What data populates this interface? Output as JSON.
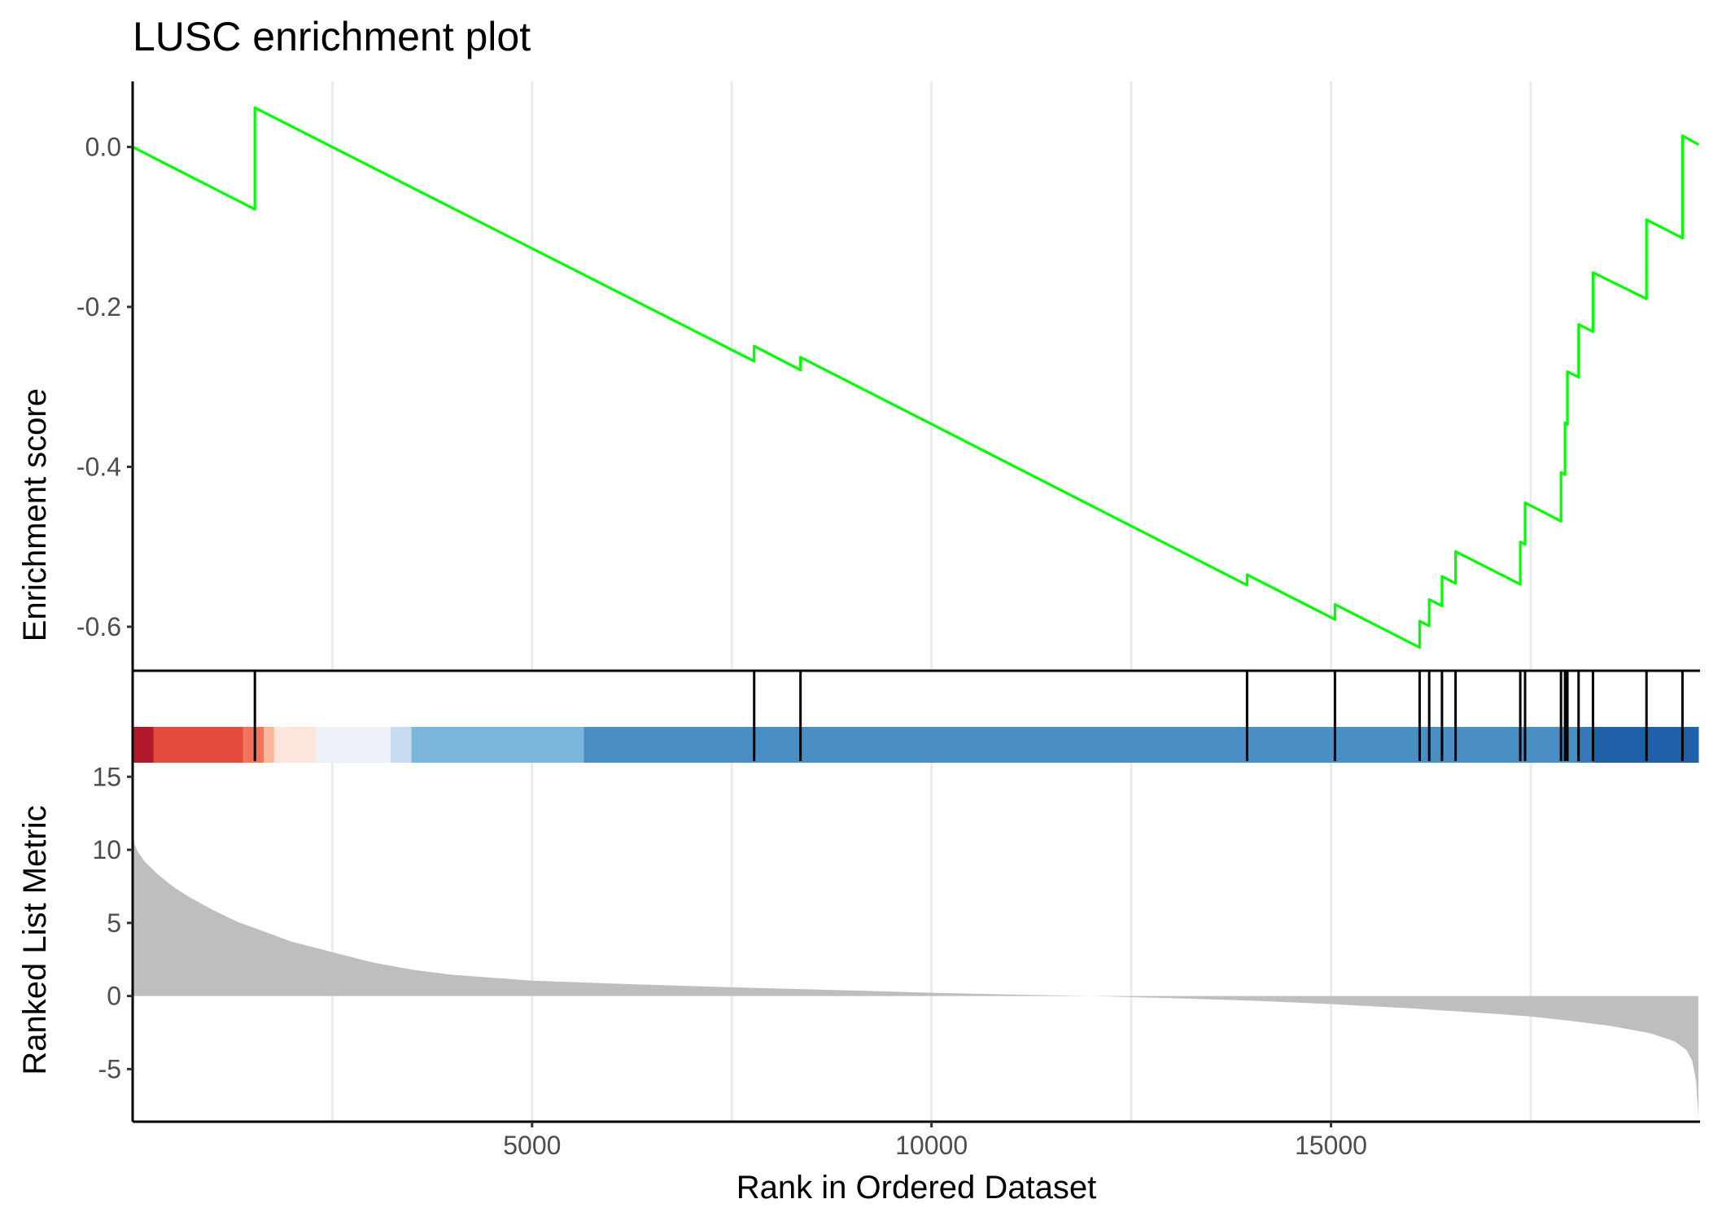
{
  "chart_data": {
    "type": "line",
    "title": "LUSC enrichment plot",
    "xlabel": "Rank in Ordered Dataset",
    "x_ticks": [
      "5000",
      "10000",
      "15000"
    ],
    "x_tick_values": [
      5000,
      10000,
      15000
    ],
    "xlim": [
      0,
      19600
    ],
    "grid_x": [
      2500,
      5000,
      7500,
      10000,
      12500,
      15000,
      17500
    ],
    "panels": {
      "enrichment": {
        "ylabel": "Enrichment score",
        "ylim": [
          -0.655,
          0.082
        ],
        "y_ticks": [
          "0.0",
          "-0.2",
          "-0.4",
          "-0.6"
        ],
        "y_tick_values": [
          0.0,
          -0.2,
          -0.4,
          -0.6
        ]
      },
      "ranked": {
        "ylabel": "Ranked List Metric",
        "ylim": [
          -8.6,
          18.3
        ],
        "y_ticks": [
          "15",
          "10",
          "5",
          "0",
          "-5"
        ],
        "y_tick_values": [
          15,
          10,
          5,
          0,
          -5
        ]
      }
    },
    "series": [
      {
        "color": "#00ff00",
        "points": [
          [
            0,
            0.0
          ],
          [
            1530,
            -0.078
          ],
          [
            1530,
            0.049
          ],
          [
            7780,
            -0.268
          ],
          [
            7780,
            -0.249
          ],
          [
            8360,
            -0.279
          ],
          [
            8360,
            -0.263
          ],
          [
            13950,
            -0.548
          ],
          [
            13950,
            -0.535
          ],
          [
            15050,
            -0.591
          ],
          [
            15050,
            -0.572
          ],
          [
            16110,
            -0.626
          ],
          [
            16110,
            -0.593
          ],
          [
            16230,
            -0.599
          ],
          [
            16230,
            -0.566
          ],
          [
            16390,
            -0.574
          ],
          [
            16390,
            -0.537
          ],
          [
            16560,
            -0.546
          ],
          [
            16560,
            -0.506
          ],
          [
            17370,
            -0.547
          ],
          [
            17370,
            -0.494
          ],
          [
            17430,
            -0.497
          ],
          [
            17430,
            -0.445
          ],
          [
            17880,
            -0.468
          ],
          [
            17880,
            -0.407
          ],
          [
            17930,
            -0.41
          ],
          [
            17930,
            -0.345
          ],
          [
            17960,
            -0.347
          ],
          [
            17960,
            -0.281
          ],
          [
            18100,
            -0.288
          ],
          [
            18100,
            -0.222
          ],
          [
            18280,
            -0.231
          ],
          [
            18280,
            -0.157
          ],
          [
            18950,
            -0.19
          ],
          [
            18950,
            -0.091
          ],
          [
            19400,
            -0.114
          ],
          [
            19400,
            0.014
          ],
          [
            19600,
            0.003
          ]
        ]
      }
    ],
    "hits": [
      1530,
      7780,
      8360,
      13950,
      15050,
      16110,
      16230,
      16390,
      16560,
      17370,
      17430,
      17880,
      17930,
      17960,
      18100,
      18280,
      18950,
      19400
    ],
    "ranked_metric": {
      "color": "#bebebe",
      "points": [
        [
          0,
          11.9
        ],
        [
          20,
          10.4
        ],
        [
          60,
          9.9
        ],
        [
          150,
          9.2
        ],
        [
          300,
          8.4
        ],
        [
          500,
          7.5
        ],
        [
          700,
          6.8
        ],
        [
          1000,
          5.9
        ],
        [
          1300,
          5.1
        ],
        [
          1600,
          4.5
        ],
        [
          2000,
          3.7
        ],
        [
          2500,
          3.0
        ],
        [
          3000,
          2.3
        ],
        [
          3500,
          1.8
        ],
        [
          4000,
          1.45
        ],
        [
          4500,
          1.25
        ],
        [
          5000,
          1.05
        ],
        [
          6000,
          0.85
        ],
        [
          7000,
          0.68
        ],
        [
          8000,
          0.52
        ],
        [
          9000,
          0.38
        ],
        [
          10000,
          0.22
        ],
        [
          11000,
          0.1
        ],
        [
          12000,
          0.0
        ],
        [
          13000,
          -0.15
        ],
        [
          14000,
          -0.32
        ],
        [
          15000,
          -0.55
        ],
        [
          16000,
          -0.85
        ],
        [
          17000,
          -1.2
        ],
        [
          17500,
          -1.4
        ],
        [
          18000,
          -1.7
        ],
        [
          18500,
          -2.05
        ],
        [
          19000,
          -2.55
        ],
        [
          19300,
          -3.1
        ],
        [
          19450,
          -3.7
        ],
        [
          19520,
          -4.4
        ],
        [
          19570,
          -5.8
        ],
        [
          19600,
          -8.3
        ]
      ]
    },
    "color_bar": [
      {
        "from": 0,
        "to": 260,
        "color": "#b2182b"
      },
      {
        "from": 260,
        "to": 1380,
        "color": "#e34a3d"
      },
      {
        "from": 1380,
        "to": 1640,
        "color": "#f47258"
      },
      {
        "from": 1640,
        "to": 1770,
        "color": "#fbb59c"
      },
      {
        "from": 1770,
        "to": 2300,
        "color": "#fde5db"
      },
      {
        "from": 2300,
        "to": 3230,
        "color": "#edf2fa"
      },
      {
        "from": 3230,
        "to": 3490,
        "color": "#c6dbef"
      },
      {
        "from": 3490,
        "to": 5650,
        "color": "#7bb5da"
      },
      {
        "from": 5650,
        "to": 18080,
        "color": "#4a8fc4"
      },
      {
        "from": 18080,
        "to": 18280,
        "color": "#3579b8"
      },
      {
        "from": 18280,
        "to": 19600,
        "color": "#1f61a8"
      }
    ]
  }
}
